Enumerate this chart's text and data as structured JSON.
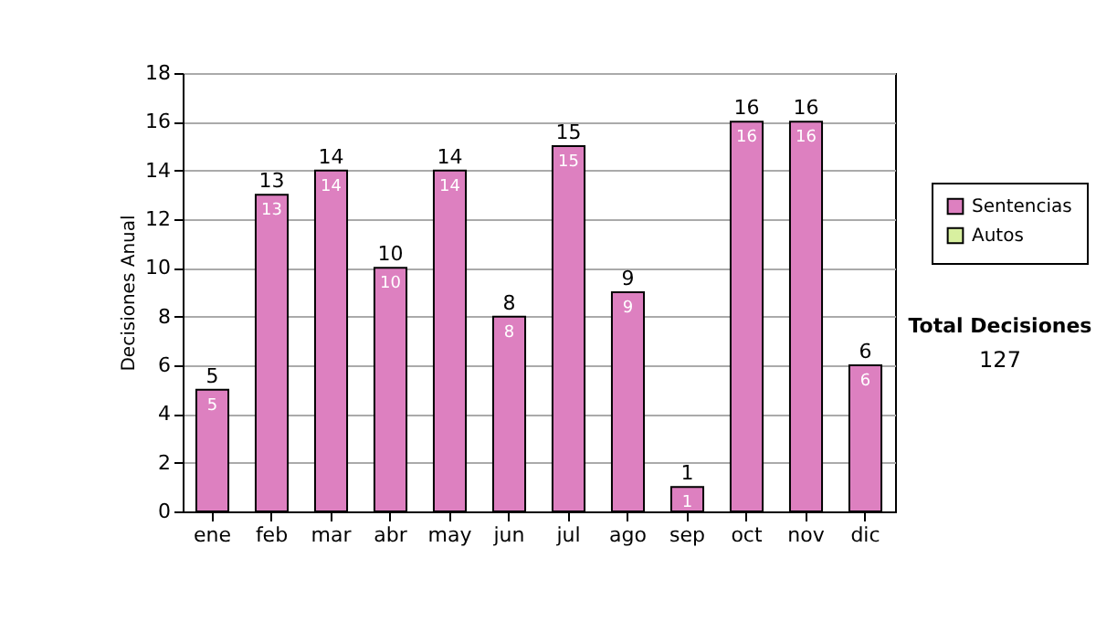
{
  "chart_data": {
    "type": "bar",
    "ylabel": "Decisiones Anual",
    "categories": [
      "ene",
      "feb",
      "mar",
      "abr",
      "may",
      "jun",
      "jul",
      "ago",
      "sep",
      "oct",
      "nov",
      "dic"
    ],
    "series": [
      {
        "name": "Sentencias",
        "color": "#dd80c0",
        "values": [
          5,
          13,
          14,
          10,
          14,
          8,
          15,
          9,
          1,
          16,
          16,
          6
        ],
        "value_labels": [
          "5",
          "13",
          "14",
          "10",
          "14",
          "8",
          "15",
          "9",
          "1",
          "16",
          "16",
          "6"
        ]
      },
      {
        "name": "Autos",
        "color": "#d8f0a0",
        "values": [
          0,
          0,
          0,
          0,
          0,
          0,
          0,
          0,
          0,
          0,
          0,
          0
        ]
      }
    ],
    "stacked": true,
    "totals": [
      "5",
      "13",
      "14",
      "10",
      "14",
      "8",
      "15",
      "9",
      "1",
      "16",
      "16",
      "6"
    ],
    "ylim": [
      0,
      18
    ],
    "yticks": [
      0,
      2,
      4,
      6,
      8,
      10,
      12,
      14,
      16,
      18
    ],
    "grid": "y",
    "legend": "right",
    "annotations": [
      "Total Decisiones",
      "127"
    ]
  }
}
